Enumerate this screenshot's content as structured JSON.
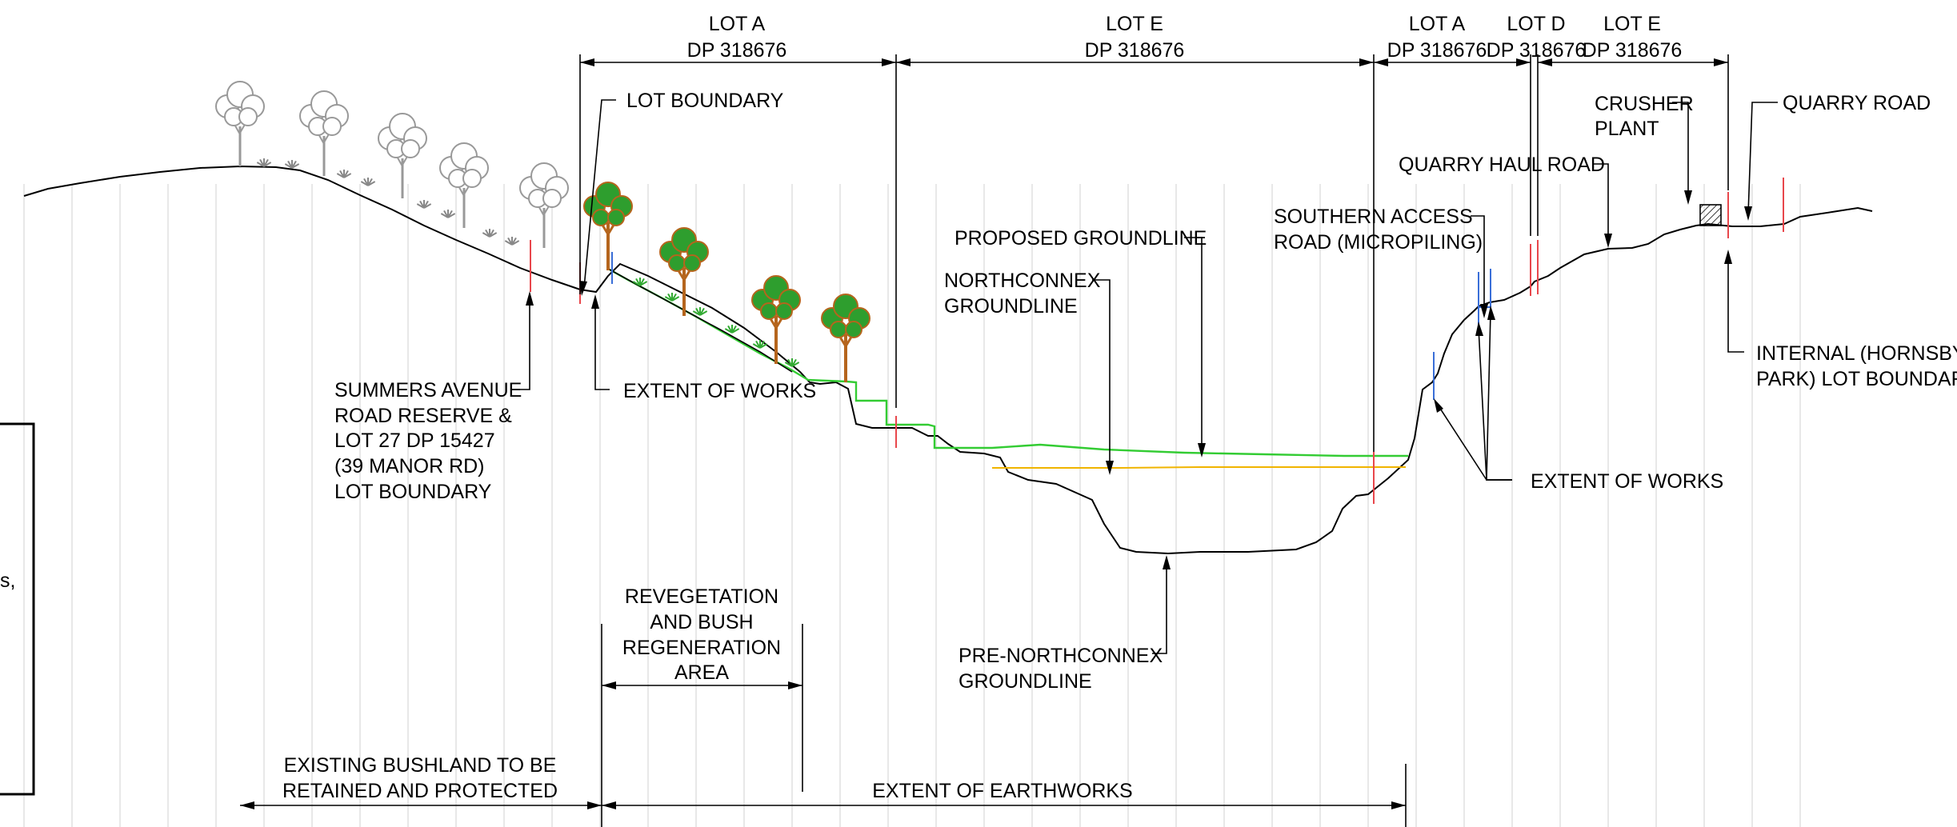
{
  "labels": {
    "lot_a_1": "LOT A",
    "dp_1": "DP 318676",
    "lot_e_1": "LOT E",
    "dp_2": "DP 318676",
    "lot_a_2": "LOT A",
    "dp_3": "DP 318676",
    "lot_d": "LOT D",
    "dp_4": "DP 318676",
    "lot_e_2": "LOT E",
    "dp_5": "DP 318676",
    "lot_boundary": "LOT BOUNDARY",
    "crusher_1": "CRUSHER",
    "crusher_2": "PLANT",
    "quarry_road": "QUARRY ROAD",
    "quarry_haul_road": "QUARRY HAUL ROAD",
    "southern_access_1": "SOUTHERN ACCESS",
    "southern_access_2": "ROAD (MICROPILING)",
    "proposed_groundline": "PROPOSED GROUNDLINE",
    "northconnex_1": "NORTHCONNEX",
    "northconnex_2": "GROUNDLINE",
    "internal_1": "INTERNAL (HORNSBY",
    "internal_2": "PARK) LOT BOUNDARY",
    "summers_1": "SUMMERS AVENUE",
    "summers_2": "ROAD RESERVE &",
    "summers_3": "LOT 27 DP 15427",
    "summers_4": "(39 MANOR RD)",
    "summers_5": "LOT BOUNDARY",
    "extent_of_works_1": "EXTENT OF WORKS",
    "extent_of_works_2": "EXTENT OF WORKS",
    "revegetation_1": "REVEGETATION",
    "revegetation_2": "AND BUSH",
    "revegetation_3": "REGENERATION",
    "revegetation_4": "AREA",
    "pre_northconnex_1": "PRE-NORTHCONNEX",
    "pre_northconnex_2": "GROUNDLINE",
    "existing_bushland_1": "EXISTING BUSHLAND TO BE",
    "existing_bushland_2": "RETAINED AND PROTECTED",
    "extent_of_earthworks": "EXTENT OF EARTHWORKS",
    "legend_fragment": "s,"
  },
  "colors": {
    "existing_ground": "#000000",
    "proposed_groundline": "#33cc33",
    "northconnex_groundline": "#f0b400",
    "lot_boundary_marker": "#e8474c",
    "extent_of_works_marker": "#3a6fd8",
    "grid": "#d9d9d9",
    "existing_tree": "#999999",
    "new_tree_trunk": "#b5651d",
    "new_tree_canopy": "#2e9e2e",
    "shrub": "#33aa33"
  }
}
